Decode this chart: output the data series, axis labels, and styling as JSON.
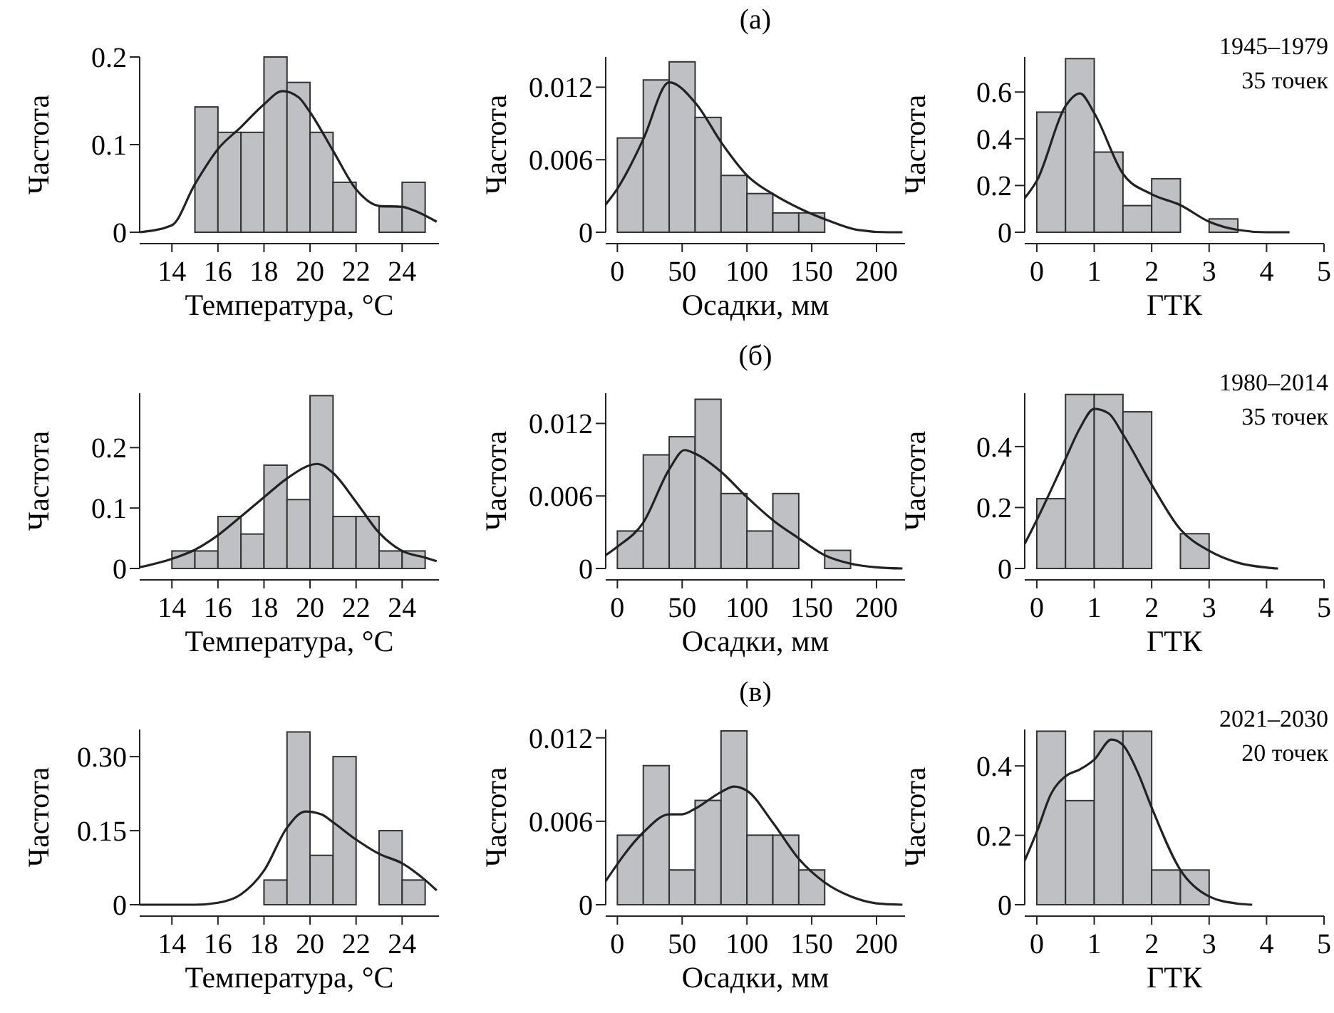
{
  "chart_data": [
    {
      "type": "histogram",
      "xlabel": "Температура, °C",
      "ylabel": "Частота",
      "color": "#bfc0c4",
      "bins": [
        13,
        14,
        15,
        16,
        17,
        18,
        19,
        20,
        21,
        22,
        23,
        24,
        25
      ],
      "values": [
        0,
        0,
        0.143,
        0.114,
        0.114,
        0.2,
        0.171,
        0.114,
        0.057,
        0,
        0.029,
        0.057
      ],
      "xlim": [
        12.6,
        25.6
      ],
      "ylim": [
        0,
        0.2
      ],
      "xticks": [
        14,
        16,
        18,
        20,
        22,
        24
      ],
      "yticks": [
        0,
        0.1,
        0.2
      ],
      "series": [
        {
          "type": "line",
          "color": "#222222",
          "x": [
            12.6,
            14,
            15,
            16,
            17,
            18,
            18.8,
            19.5,
            20,
            21,
            22,
            23,
            24,
            24.5,
            25.5
          ],
          "values": [
            0,
            0.008,
            0.055,
            0.095,
            0.12,
            0.146,
            0.161,
            0.154,
            0.137,
            0.093,
            0.049,
            0.03,
            0.029,
            0.025,
            0.012
          ]
        }
      ]
    },
    {
      "type": "histogram",
      "title": "(а)",
      "xlabel": "Осадки, мм",
      "ylabel": "Частота",
      "color": "#bfc0c4",
      "bins": [
        0,
        20,
        40,
        60,
        80,
        100,
        120,
        140,
        160
      ],
      "values": [
        0.0078,
        0.0126,
        0.0141,
        0.0095,
        0.0047,
        0.0032,
        0.0016,
        0.0016
      ],
      "xlim": [
        -9,
        222
      ],
      "ylim": [
        0,
        0.0145
      ],
      "xticks": [
        0,
        50,
        100,
        150,
        200
      ],
      "yticks": [
        0,
        0.006,
        0.012
      ],
      "series": [
        {
          "type": "line",
          "color": "#222222",
          "x": [
            -9,
            0,
            10,
            20,
            40,
            61,
            81,
            101,
            121,
            142,
            162,
            185,
            209,
            220
          ],
          "values": [
            0.0023,
            0.0036,
            0.0055,
            0.0077,
            0.0124,
            0.0106,
            0.0073,
            0.0046,
            0.0031,
            0.0019,
            0.001,
            0.0002,
            0,
            0
          ]
        }
      ]
    },
    {
      "type": "histogram",
      "xlabel": "ГТК",
      "ylabel": "Частота",
      "color": "#bfc0c4",
      "bins": [
        0,
        0.5,
        1,
        1.5,
        2,
        2.5,
        3,
        3.5,
        4,
        4.5,
        5
      ],
      "values": [
        0.514,
        0.743,
        0.343,
        0.114,
        0.229,
        0,
        0.057,
        0,
        0,
        0
      ],
      "xlim": [
        -0.21,
        5
      ],
      "ylim": [
        0,
        0.75
      ],
      "xticks": [
        0,
        1,
        2,
        3,
        4,
        5
      ],
      "yticks": [
        0,
        0.2,
        0.4,
        0.6
      ],
      "annotations": [
        "1945–1979",
        "35 точек"
      ],
      "series": [
        {
          "type": "line",
          "color": "#222222",
          "x": [
            -0.21,
            0,
            0.5,
            0.75,
            1,
            1.5,
            2,
            2.5,
            3,
            3.5,
            4,
            4.4
          ],
          "values": [
            0.146,
            0.22,
            0.54,
            0.594,
            0.51,
            0.25,
            0.163,
            0.116,
            0.045,
            0.01,
            0,
            0
          ]
        }
      ]
    },
    {
      "type": "histogram",
      "xlabel": "Температура, °C",
      "ylabel": "Частота",
      "color": "#bfc0c4",
      "bins": [
        13,
        14,
        15,
        16,
        17,
        18,
        19,
        20,
        21,
        22,
        23,
        24,
        25
      ],
      "values": [
        0,
        0.029,
        0.029,
        0.086,
        0.057,
        0.171,
        0.114,
        0.286,
        0.086,
        0.086,
        0.029,
        0.029
      ],
      "xlim": [
        12.6,
        25.6
      ],
      "ylim": [
        0,
        0.29
      ],
      "xticks": [
        14,
        16,
        18,
        20,
        22,
        24
      ],
      "yticks": [
        0,
        0.1,
        0.2
      ],
      "series": [
        {
          "type": "line",
          "color": "#222222",
          "x": [
            12.6,
            14,
            15,
            16,
            17,
            18,
            19,
            20,
            20.3,
            21,
            22,
            23,
            24,
            25,
            25.5
          ],
          "values": [
            0.002,
            0.016,
            0.031,
            0.055,
            0.086,
            0.118,
            0.149,
            0.171,
            0.173,
            0.158,
            0.11,
            0.059,
            0.029,
            0.018,
            0.012
          ]
        }
      ]
    },
    {
      "type": "histogram",
      "title": "(б)",
      "xlabel": "Осадки, мм",
      "ylabel": "Частота",
      "color": "#bfc0c4",
      "bins": [
        0,
        20,
        40,
        60,
        80,
        100,
        120,
        140,
        160,
        180
      ],
      "values": [
        0.0031,
        0.0094,
        0.0109,
        0.014,
        0.0062,
        0.0031,
        0.0062,
        0,
        0.0015
      ],
      "xlim": [
        -9,
        222
      ],
      "ylim": [
        0,
        0.0145
      ],
      "xticks": [
        0,
        50,
        100,
        150,
        200
      ],
      "yticks": [
        0,
        0.006,
        0.012
      ],
      "series": [
        {
          "type": "line",
          "color": "#222222",
          "x": [
            -9,
            0,
            20,
            40,
            52,
            60,
            80,
            100,
            120,
            140,
            160,
            180,
            200,
            220
          ],
          "values": [
            0.0011,
            0.0018,
            0.0038,
            0.0082,
            0.0098,
            0.0095,
            0.008,
            0.0059,
            0.004,
            0.0025,
            0.0011,
            0.0004,
            0.0001,
            0
          ]
        }
      ]
    },
    {
      "type": "histogram",
      "xlabel": "ГТК",
      "ylabel": "Частота",
      "color": "#bfc0c4",
      "bins": [
        0,
        0.5,
        1,
        1.5,
        2,
        2.5,
        3,
        3.5,
        4,
        4.5,
        5
      ],
      "values": [
        0.229,
        0.571,
        0.571,
        0.514,
        0,
        0.114,
        0,
        0,
        0,
        0
      ],
      "xlim": [
        -0.21,
        5
      ],
      "ylim": [
        0,
        0.575
      ],
      "xticks": [
        0,
        1,
        2,
        3,
        4,
        5
      ],
      "yticks": [
        0,
        0.2,
        0.4
      ],
      "annotations": [
        "1980–2014",
        "35 точек"
      ],
      "series": [
        {
          "type": "line",
          "color": "#222222",
          "x": [
            -0.21,
            0,
            0.5,
            0.75,
            1,
            1.25,
            1.5,
            2,
            2.5,
            3,
            3.5,
            4,
            4.2
          ],
          "values": [
            0.081,
            0.159,
            0.36,
            0.46,
            0.524,
            0.509,
            0.44,
            0.275,
            0.128,
            0.058,
            0.019,
            0.003,
            0
          ]
        }
      ]
    },
    {
      "type": "histogram",
      "xlabel": "Температура, °C",
      "ylabel": "Частота",
      "color": "#bfc0c4",
      "bins": [
        13,
        14,
        15,
        16,
        17,
        18,
        19,
        20,
        21,
        22,
        23,
        24,
        25
      ],
      "values": [
        0,
        0,
        0,
        0,
        0,
        0.05,
        0.35,
        0.1,
        0.3,
        0,
        0.15,
        0.05
      ],
      "xlim": [
        12.6,
        25.6
      ],
      "ylim": [
        0,
        0.355
      ],
      "xticks": [
        14,
        16,
        18,
        20,
        22,
        24
      ],
      "yticks": [
        0,
        0.15,
        {
          "value": 0.3,
          "label": "0.30"
        }
      ],
      "series": [
        {
          "type": "line",
          "color": "#222222",
          "x": [
            12.6,
            15,
            16,
            17,
            18,
            19,
            19.8,
            20.5,
            21,
            22,
            23,
            24,
            25,
            25.5
          ],
          "values": [
            0,
            0,
            0.004,
            0.021,
            0.069,
            0.156,
            0.189,
            0.183,
            0.167,
            0.132,
            0.103,
            0.084,
            0.05,
            0.029
          ]
        }
      ]
    },
    {
      "type": "histogram",
      "title": "(в)",
      "xlabel": "Осадки, мм",
      "ylabel": "Частота",
      "color": "#bfc0c4",
      "bins": [
        0,
        20,
        40,
        60,
        80,
        100,
        120,
        140,
        160
      ],
      "values": [
        0.005,
        0.01,
        0.0025,
        0.0075,
        0.0125,
        0.005,
        0.005,
        0.0025
      ],
      "xlim": [
        -9,
        222
      ],
      "ylim": [
        0,
        0.0126
      ],
      "xticks": [
        0,
        50,
        100,
        150,
        200
      ],
      "yticks": [
        0,
        0.006,
        0.012
      ],
      "series": [
        {
          "type": "line",
          "color": "#222222",
          "x": [
            -9,
            20,
            40,
            50,
            60,
            80,
            90,
            100,
            120,
            140,
            160,
            180,
            200,
            220
          ],
          "values": [
            0.0017,
            0.0052,
            0.0065,
            0.0065,
            0.0069,
            0.0081,
            0.0085,
            0.0082,
            0.0059,
            0.0033,
            0.0016,
            0.0006,
            0.0001,
            0
          ]
        }
      ]
    },
    {
      "type": "histogram",
      "xlabel": "ГТК",
      "ylabel": "Частота",
      "color": "#bfc0c4",
      "bins": [
        0,
        0.5,
        1,
        1.5,
        2,
        2.5,
        3,
        3.5,
        4,
        4.5,
        5
      ],
      "values": [
        0.5,
        0.3,
        0.5,
        0.5,
        0.1,
        0.1,
        0,
        0,
        0,
        0
      ],
      "xlim": [
        -0.21,
        5
      ],
      "ylim": [
        0,
        0.505
      ],
      "xticks": [
        0,
        1,
        2,
        3,
        4,
        5
      ],
      "yticks": [
        0,
        0.2,
        0.4
      ],
      "annotations": [
        "2021–2030",
        "20 точек"
      ],
      "series": [
        {
          "type": "line",
          "color": "#222222",
          "x": [
            -0.21,
            0,
            0.25,
            0.5,
            0.75,
            1,
            1.3,
            1.5,
            1.75,
            2,
            2.5,
            3,
            3.5,
            3.75
          ],
          "values": [
            0.127,
            0.21,
            0.32,
            0.37,
            0.39,
            0.418,
            0.476,
            0.46,
            0.384,
            0.28,
            0.1,
            0.024,
            0.003,
            0
          ]
        }
      ]
    }
  ]
}
